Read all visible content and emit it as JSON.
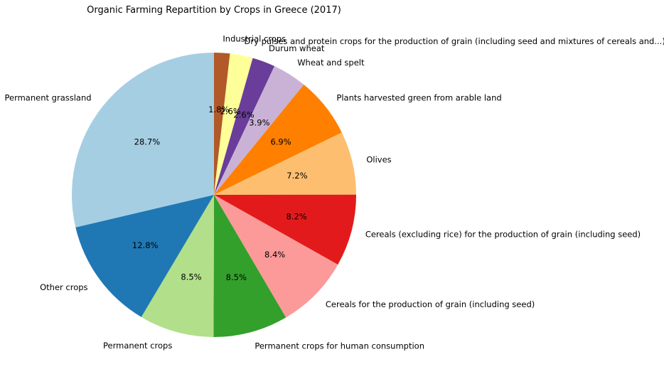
{
  "chart_data": {
    "type": "pie",
    "title": "Organic Farming Repartition by Crops in Greece (2017)",
    "start_angle_deg": 90,
    "direction": "clockwise",
    "slices": [
      {
        "label": "Industrial crops",
        "value": 1.8,
        "pct_label": "1.8%",
        "color": "#b15928"
      },
      {
        "label": "Dry pulses and protein crops for the production of grain (including seed and mixtures of cereals and...)",
        "value": 2.6,
        "pct_label": "2.6%",
        "color": "#ffff99"
      },
      {
        "label": "Durum wheat",
        "value": 2.6,
        "pct_label": "2.6%",
        "color": "#6a3d9a"
      },
      {
        "label": "Wheat and spelt",
        "value": 3.9,
        "pct_label": "3.9%",
        "color": "#cab2d6"
      },
      {
        "label": "Plants harvested green from arable land",
        "value": 6.9,
        "pct_label": "6.9%",
        "color": "#ff7f00"
      },
      {
        "label": "Olives",
        "value": 7.2,
        "pct_label": "7.2%",
        "color": "#fdbf6f"
      },
      {
        "label": "Cereals (excluding rice) for the production of grain (including seed)",
        "value": 8.2,
        "pct_label": "8.2%",
        "color": "#e31a1c"
      },
      {
        "label": "Cereals for the production of grain (including seed)",
        "value": 8.4,
        "pct_label": "8.4%",
        "color": "#fb9a99"
      },
      {
        "label": "Permanent crops for human consumption",
        "value": 8.5,
        "pct_label": "8.5%",
        "color": "#33a02c"
      },
      {
        "label": "Permanent crops",
        "value": 8.5,
        "pct_label": "8.5%",
        "color": "#b2df8a"
      },
      {
        "label": "Other crops",
        "value": 12.8,
        "pct_label": "12.8%",
        "color": "#1f78b4"
      },
      {
        "label": "Permanent grassland",
        "value": 28.7,
        "pct_label": "28.7%",
        "color": "#a6cee3"
      }
    ]
  }
}
